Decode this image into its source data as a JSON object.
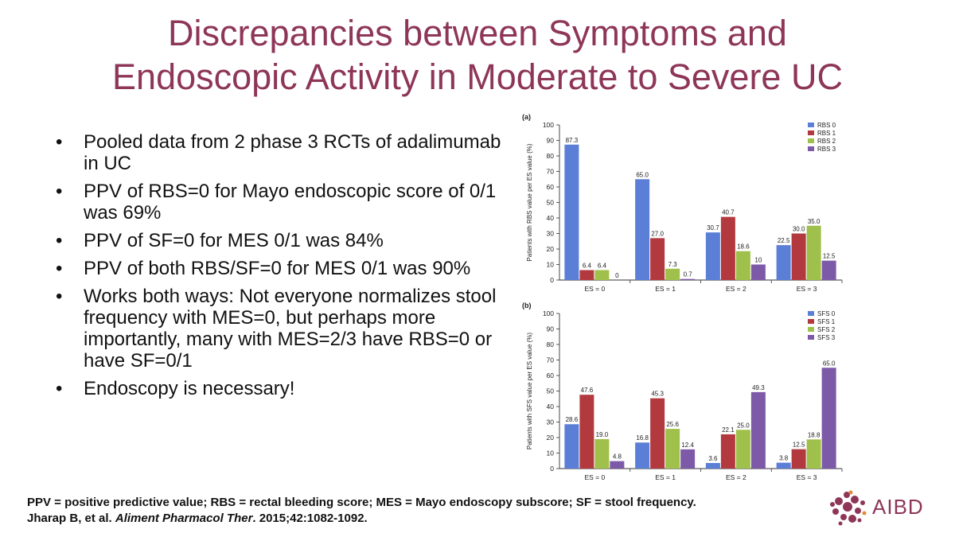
{
  "title": {
    "line1": "Discrepancies between Symptoms and",
    "line2": "Endoscopic Activity in Moderate to Severe UC"
  },
  "bullets": [
    "Pooled data from 2 phase 3 RCTs of adalimumab in UC",
    "PPV of RBS=0 for Mayo endoscopic score of 0/1 was 69%",
    "PPV of SF=0 for MES 0/1 was 84%",
    "PPV of both RBS/SF=0 for MES 0/1 was 90%",
    "Works both ways: Not everyone normalizes stool frequency with MES=0, but perhaps more importantly, many with MES=2/3 have RBS=0 or have SF=0/1",
    "Endoscopy is necessary!"
  ],
  "footnote": {
    "line1": "PPV = positive predictive value; RBS = rectal bleeding score; MES = Mayo endoscopy subscore; SF = stool frequency.",
    "line2_prefix": "Jharap B, et al. ",
    "line2_journal": "Aliment Pharmacol Ther",
    "line2_suffix": ". 2015;42:1082-1092."
  },
  "logo": {
    "text": "AIBD"
  },
  "colors": {
    "title": "#8e3658",
    "series": [
      "#5b7fd6",
      "#b23a3f",
      "#9fc04a",
      "#7d5aa8"
    ]
  },
  "chart_data": [
    {
      "panel": "(a)",
      "type": "bar",
      "categories": [
        "ES = 0",
        "ES = 1",
        "ES = 2",
        "ES = 3"
      ],
      "series": [
        {
          "name": "RBS 0",
          "values": [
            87.3,
            65.0,
            30.7,
            22.5
          ],
          "labels": [
            "87.3",
            "65.0",
            "30.7",
            "22.5"
          ]
        },
        {
          "name": "RBS 1",
          "values": [
            6.4,
            27.0,
            40.7,
            30.0
          ],
          "labels": [
            "6.4",
            "27.0",
            "40.7",
            "30.0"
          ]
        },
        {
          "name": "RBS 2",
          "values": [
            6.4,
            7.3,
            18.6,
            35.0
          ],
          "labels": [
            "6.4",
            "7.3",
            "18.6",
            "35.0"
          ]
        },
        {
          "name": "RBS 3",
          "values": [
            0,
            0.7,
            10,
            12.5
          ],
          "labels": [
            "0",
            "0.7",
            "10",
            "12.5"
          ]
        }
      ],
      "ylabel": "Patients with RBS value per ES value (%)",
      "yticks": [
        0,
        10,
        20,
        30,
        40,
        50,
        60,
        70,
        80,
        90,
        100
      ],
      "ylim": [
        0,
        100
      ],
      "legend": "top-right"
    },
    {
      "panel": "(b)",
      "type": "bar",
      "categories": [
        "ES = 0",
        "ES = 1",
        "ES = 2",
        "ES = 3"
      ],
      "series": [
        {
          "name": "SFS 0",
          "values": [
            28.6,
            16.8,
            3.6,
            3.8
          ],
          "labels": [
            "28.6",
            "16.8",
            "3.6",
            "3.8"
          ]
        },
        {
          "name": "SFS 1",
          "values": [
            47.6,
            45.3,
            22.1,
            12.5
          ],
          "labels": [
            "47.6",
            "45.3",
            "22.1",
            "12.5"
          ]
        },
        {
          "name": "SFS 2",
          "values": [
            19.0,
            25.6,
            25.0,
            18.8
          ],
          "labels": [
            "19.0",
            "25.6",
            "25.0",
            "18.8"
          ]
        },
        {
          "name": "SFS 3",
          "values": [
            4.8,
            12.4,
            49.3,
            65.0
          ],
          "labels": [
            "4.8",
            "12.4",
            "49.3",
            "65.0"
          ]
        }
      ],
      "ylabel": "Patients with SFS value per ES value (%)",
      "yticks": [
        0,
        10,
        20,
        30,
        40,
        50,
        60,
        70,
        80,
        90,
        100
      ],
      "ylim": [
        0,
        100
      ],
      "legend": "top-right"
    }
  ]
}
